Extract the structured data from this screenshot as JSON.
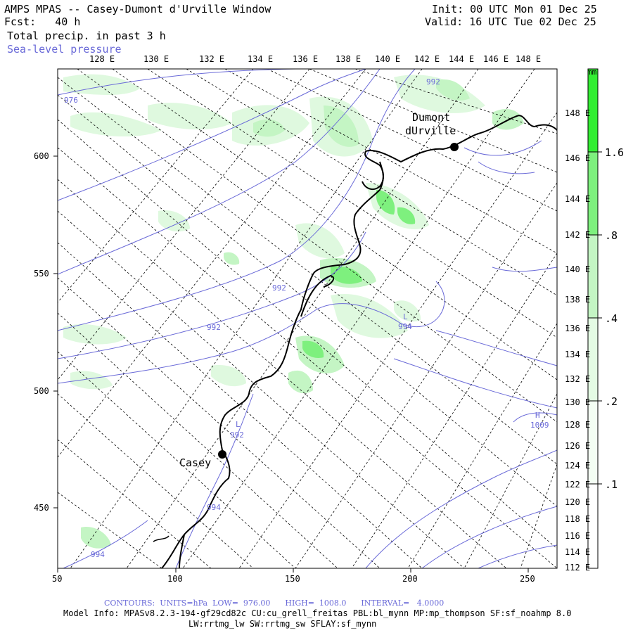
{
  "header": {
    "title": "AMPS MPAS -- Casey-Dumont d'Urville Window",
    "fcst": "Fcst:   40 h",
    "field": "Total precip. in past 3 h",
    "contour_field": "Sea-level pressure",
    "init": "Init: 00 UTC Mon 01 Dec 25",
    "valid": "Valid: 16 UTC Tue 02 Dec 25"
  },
  "top_lon_labels": [
    "128 E",
    "130 E",
    "132 E",
    "134 E",
    "136 E",
    "138 E",
    "140 E",
    "142 E",
    "144 E",
    "146 E",
    "148 E"
  ],
  "right_lon_labels": [
    "148 E",
    "146 E",
    "144 E",
    "142 E",
    "140 E",
    "138 E",
    "136 E",
    "134 E",
    "132 E",
    "130 E",
    "128 E",
    "126 E",
    "124 E",
    "122 E",
    "120 E",
    "118 E",
    "116 E",
    "114 E",
    "112 E"
  ],
  "x_axis_labels": [
    "50",
    "100",
    "150",
    "200",
    "250"
  ],
  "y_axis_labels": [
    "600",
    "550",
    "500",
    "450"
  ],
  "stations": [
    {
      "name_line1": "Dumont",
      "name_line2": "dUrville"
    },
    {
      "name_line1": "Casey",
      "name_line2": ""
    }
  ],
  "pressure_labels": [
    "976",
    "992",
    "992",
    "992",
    "994",
    "994",
    "994",
    "992",
    "1009"
  ],
  "pressure_centers": [
    "L",
    "L",
    "H"
  ],
  "colorbar": {
    "unit": "mm",
    "labels": [
      "1.6",
      ".8",
      ".4",
      ".2",
      ".1"
    ],
    "colors": [
      "#33ee33",
      "#7ef07e",
      "#c4f5c4",
      "#e4fbe4",
      "#f4fef4"
    ]
  },
  "footer": {
    "contours": "CONTOURS:  UNITS=hPa  LOW=  976.00      HIGH=  1008.0      INTERVAL=   4.0000",
    "model_info": "Model Info: MPASv8.2.3-194-gf29cd82c CU:cu_grell_freitas PBL:bl_mynn MP:mp_thompson SF:sf_noahmp 8.0",
    "model_info2": "LW:rrtmg_lw SW:rrtmg_sw SFLAY:sf_mynn"
  }
}
